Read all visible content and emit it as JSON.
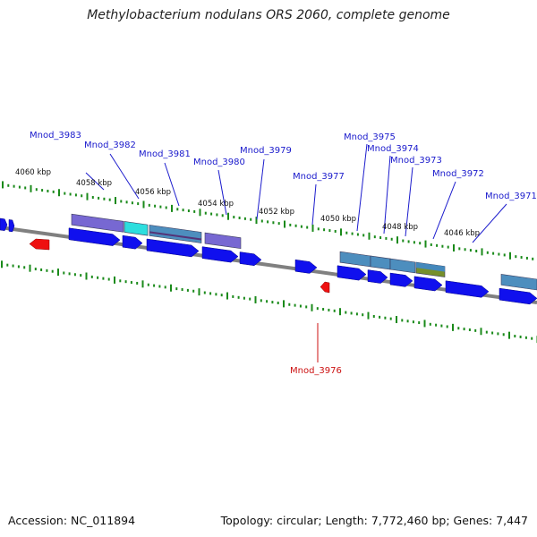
{
  "title": "Methylobacterium nodulans ORS 2060, complete genome",
  "footer": {
    "accession": "Accession: NC_011894",
    "summary": "Topology: circular; Length: 7,772,460 bp; Genes: 7,447"
  },
  "colors": {
    "forward_gene": "#1010ee",
    "reverse_gene": "#ee1111",
    "backbone": "#808080",
    "tick": "#1a8a1a",
    "label_blue": "#1a1acc",
    "label_red": "#cc1111",
    "feature_purple": "#7060d0",
    "feature_cyan": "#22dddd",
    "feature_steel": "#4488bb",
    "feature_olive": "#6f8a20"
  },
  "scale_labels": [
    "4060 kbp",
    "4058 kbp",
    "4056 kbp",
    "4054 kbp",
    "4052 kbp",
    "4050 kbp",
    "4048 kbp",
    "4046 kbp"
  ],
  "gene_labels": [
    {
      "name": "Mnod_3983",
      "strand": "forward"
    },
    {
      "name": "Mnod_3982",
      "strand": "forward"
    },
    {
      "name": "Mnod_3981",
      "strand": "forward"
    },
    {
      "name": "Mnod_3980",
      "strand": "forward"
    },
    {
      "name": "Mnod_3979",
      "strand": "forward"
    },
    {
      "name": "Mnod_3977",
      "strand": "forward"
    },
    {
      "name": "Mnod_3975",
      "strand": "forward"
    },
    {
      "name": "Mnod_3974",
      "strand": "forward"
    },
    {
      "name": "Mnod_3973",
      "strand": "forward"
    },
    {
      "name": "Mnod_3972",
      "strand": "forward"
    },
    {
      "name": "Mnod_3971",
      "strand": "forward"
    },
    {
      "name": "Mnod_3976",
      "strand": "reverse"
    }
  ]
}
